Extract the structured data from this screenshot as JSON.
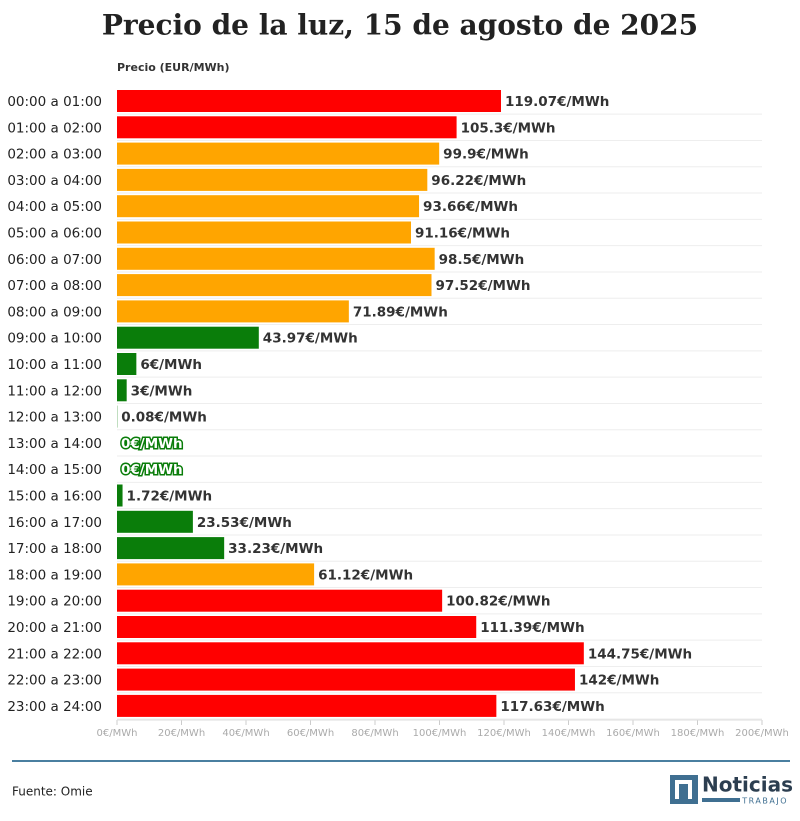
{
  "chart_data": {
    "type": "bar",
    "orientation": "horizontal",
    "title": "Precio de la luz, 15 de agosto de 2025",
    "axis_label": "Precio (EUR/MWh)",
    "categories": [
      "00:00 a 01:00",
      "01:00 a 02:00",
      "02:00 a 03:00",
      "03:00 a 04:00",
      "04:00 a 05:00",
      "05:00 a 06:00",
      "06:00 a 07:00",
      "07:00 a 08:00",
      "08:00 a 09:00",
      "09:00 a 10:00",
      "10:00 a 11:00",
      "11:00 a 12:00",
      "12:00 a 13:00",
      "13:00 a 14:00",
      "14:00 a 15:00",
      "15:00 a 16:00",
      "16:00 a 17:00",
      "17:00 a 18:00",
      "18:00 a 19:00",
      "19:00 a 20:00",
      "20:00 a 21:00",
      "21:00 a 22:00",
      "22:00 a 23:00",
      "23:00 a 24:00"
    ],
    "values": [
      119.07,
      105.3,
      99.9,
      96.22,
      93.66,
      91.16,
      98.5,
      97.52,
      71.89,
      43.97,
      6,
      3,
      0.08,
      0,
      0,
      1.72,
      23.53,
      33.23,
      61.12,
      100.82,
      111.39,
      144.75,
      142,
      117.63
    ],
    "value_labels": [
      "119.07€/MWh",
      "105.3€/MWh",
      "99.9€/MWh",
      "96.22€/MWh",
      "93.66€/MWh",
      "91.16€/MWh",
      "98.5€/MWh",
      "97.52€/MWh",
      "71.89€/MWh",
      "43.97€/MWh",
      "6€/MWh",
      "3€/MWh",
      "0.08€/MWh",
      "0€/MWh",
      "0€/MWh",
      "1.72€/MWh",
      "23.53€/MWh",
      "33.23€/MWh",
      "61.12€/MWh",
      "100.82€/MWh",
      "111.39€/MWh",
      "144.75€/MWh",
      "142€/MWh",
      "117.63€/MWh"
    ],
    "colors": [
      "#ff0000",
      "#ff0000",
      "#ffa500",
      "#ffa500",
      "#ffa500",
      "#ffa500",
      "#ffa500",
      "#ffa500",
      "#ffa500",
      "#0a7d0a",
      "#0a7d0a",
      "#0a7d0a",
      "#0a7d0a",
      "#0a7d0a",
      "#0a7d0a",
      "#0a7d0a",
      "#0a7d0a",
      "#0a7d0a",
      "#ffa500",
      "#ff0000",
      "#ff0000",
      "#ff0000",
      "#ff0000",
      "#ff0000"
    ],
    "xlim": [
      0,
      200
    ],
    "xticks": [
      {
        "value": 0,
        "label": "0€/MWh"
      },
      {
        "value": 20,
        "label": "20€/MWh"
      },
      {
        "value": 40,
        "label": "40€/MWh"
      },
      {
        "value": 60,
        "label": "60€/MWh"
      },
      {
        "value": 80,
        "label": "80€/MWh"
      },
      {
        "value": 100,
        "label": "100€/MWh"
      },
      {
        "value": 120,
        "label": "120€/MWh"
      },
      {
        "value": 140,
        "label": "140€/MWh"
      },
      {
        "value": 160,
        "label": "160€/MWh"
      },
      {
        "value": 180,
        "label": "180€/MWh"
      },
      {
        "value": 200,
        "label": "200€/MWh"
      }
    ],
    "source": "Fuente: Omie"
  },
  "logo": {
    "name": "Noticias",
    "sub": "TRABAJO"
  }
}
